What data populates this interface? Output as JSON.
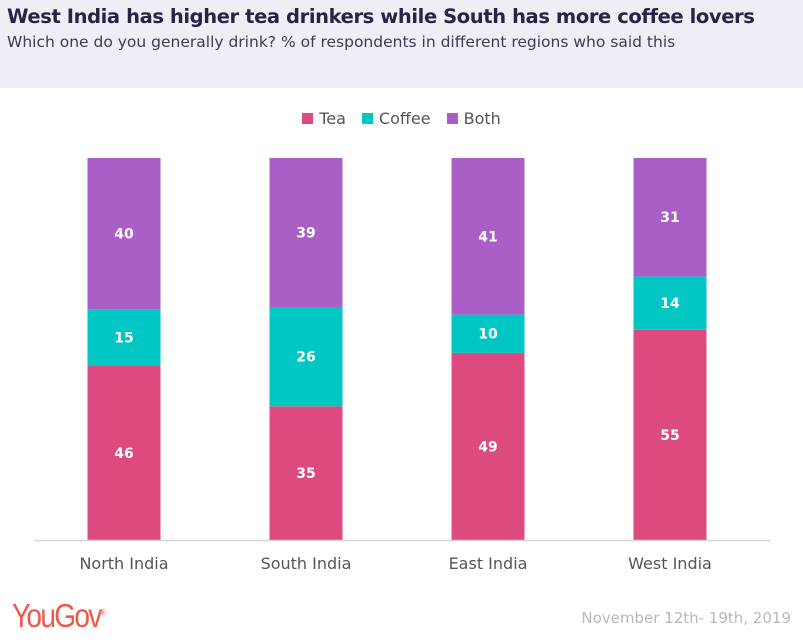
{
  "title": "West India has higher tea drinkers while South has more coffee lovers",
  "subtitle": "Which one do you generally drink? % of respondents in different regions who said this",
  "footer": {
    "logo": "YouGov",
    "date": "November 12th- 19th, 2019"
  },
  "chart_data": {
    "type": "bar",
    "stacked": true,
    "categories": [
      "North India",
      "South India",
      "East India",
      "West India"
    ],
    "series": [
      {
        "name": "Tea",
        "color": "#dd4a7f",
        "values": [
          46,
          35,
          49,
          55
        ]
      },
      {
        "name": "Coffee",
        "color": "#00c7c4",
        "values": [
          15,
          26,
          10,
          14
        ]
      },
      {
        "name": "Both",
        "color": "#a95fc6",
        "values": [
          40,
          39,
          41,
          31
        ]
      }
    ],
    "legend_position": "top",
    "grid": false
  }
}
